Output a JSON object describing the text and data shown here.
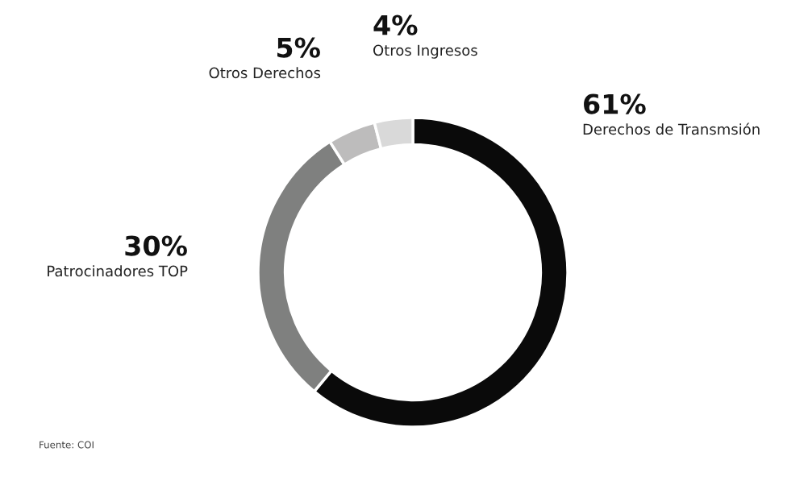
{
  "chart_data": {
    "type": "donut",
    "categories": [
      "Derechos de Transmsión",
      "Patrocinadores TOP",
      "Otros Derechos",
      "Otros Ingresos"
    ],
    "values": [
      61,
      30,
      5,
      4
    ],
    "value_labels": [
      "61%",
      "30%",
      "5%",
      "4%"
    ],
    "colors": [
      "#0a0a0a",
      "#7f807f",
      "#bdbcbc",
      "#d9d9d9"
    ],
    "annotations": [
      "Fuente: COI"
    ]
  }
}
